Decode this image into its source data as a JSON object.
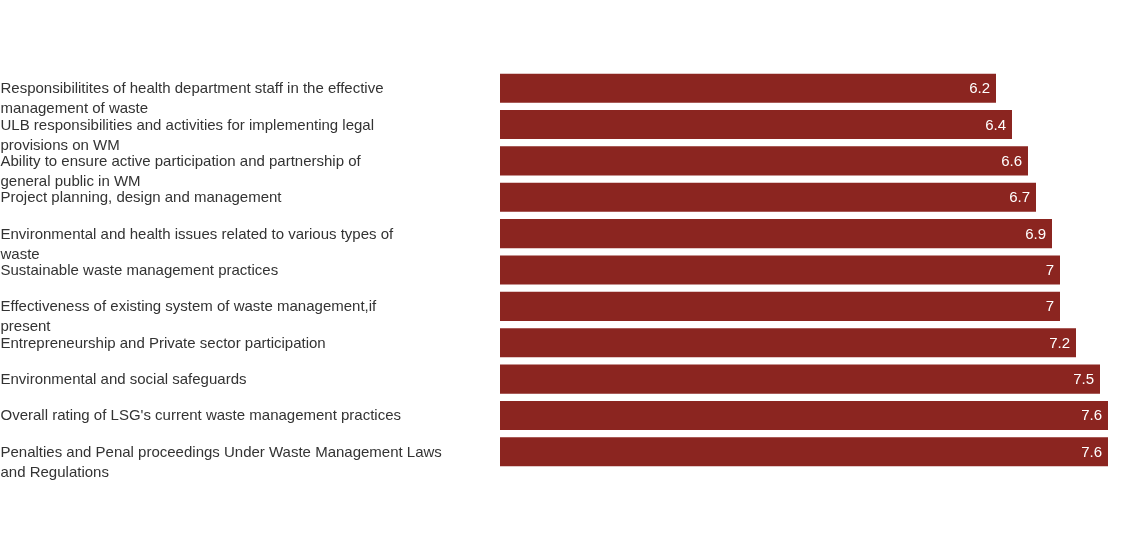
{
  "chart_data": {
    "type": "bar",
    "orientation": "horizontal",
    "data_labels": true,
    "color": "#8b2520",
    "categories": [
      "Responsibilitites of health department staff in the effective management of waste",
      "ULB responsibilities and activities for implementing legal provisions on WM",
      "Ability to ensure active participation and partnership of general public in WM",
      "Project planning, design and management",
      "Environmental and health issues related to various types of waste",
      "Sustainable waste management practices",
      "Effectiveness of existing system of waste management,if present",
      "Entrepreneurship and Private sector participation",
      "Environmental and social safeguards",
      "Overall rating of LSG's current waste management practices",
      "Penalties and Penal proceedings Under Waste Management Laws and Regulations"
    ],
    "values": [
      6.2,
      6.4,
      6.6,
      6.7,
      6.9,
      7,
      7,
      7.2,
      7.5,
      7.6,
      7.6
    ]
  }
}
